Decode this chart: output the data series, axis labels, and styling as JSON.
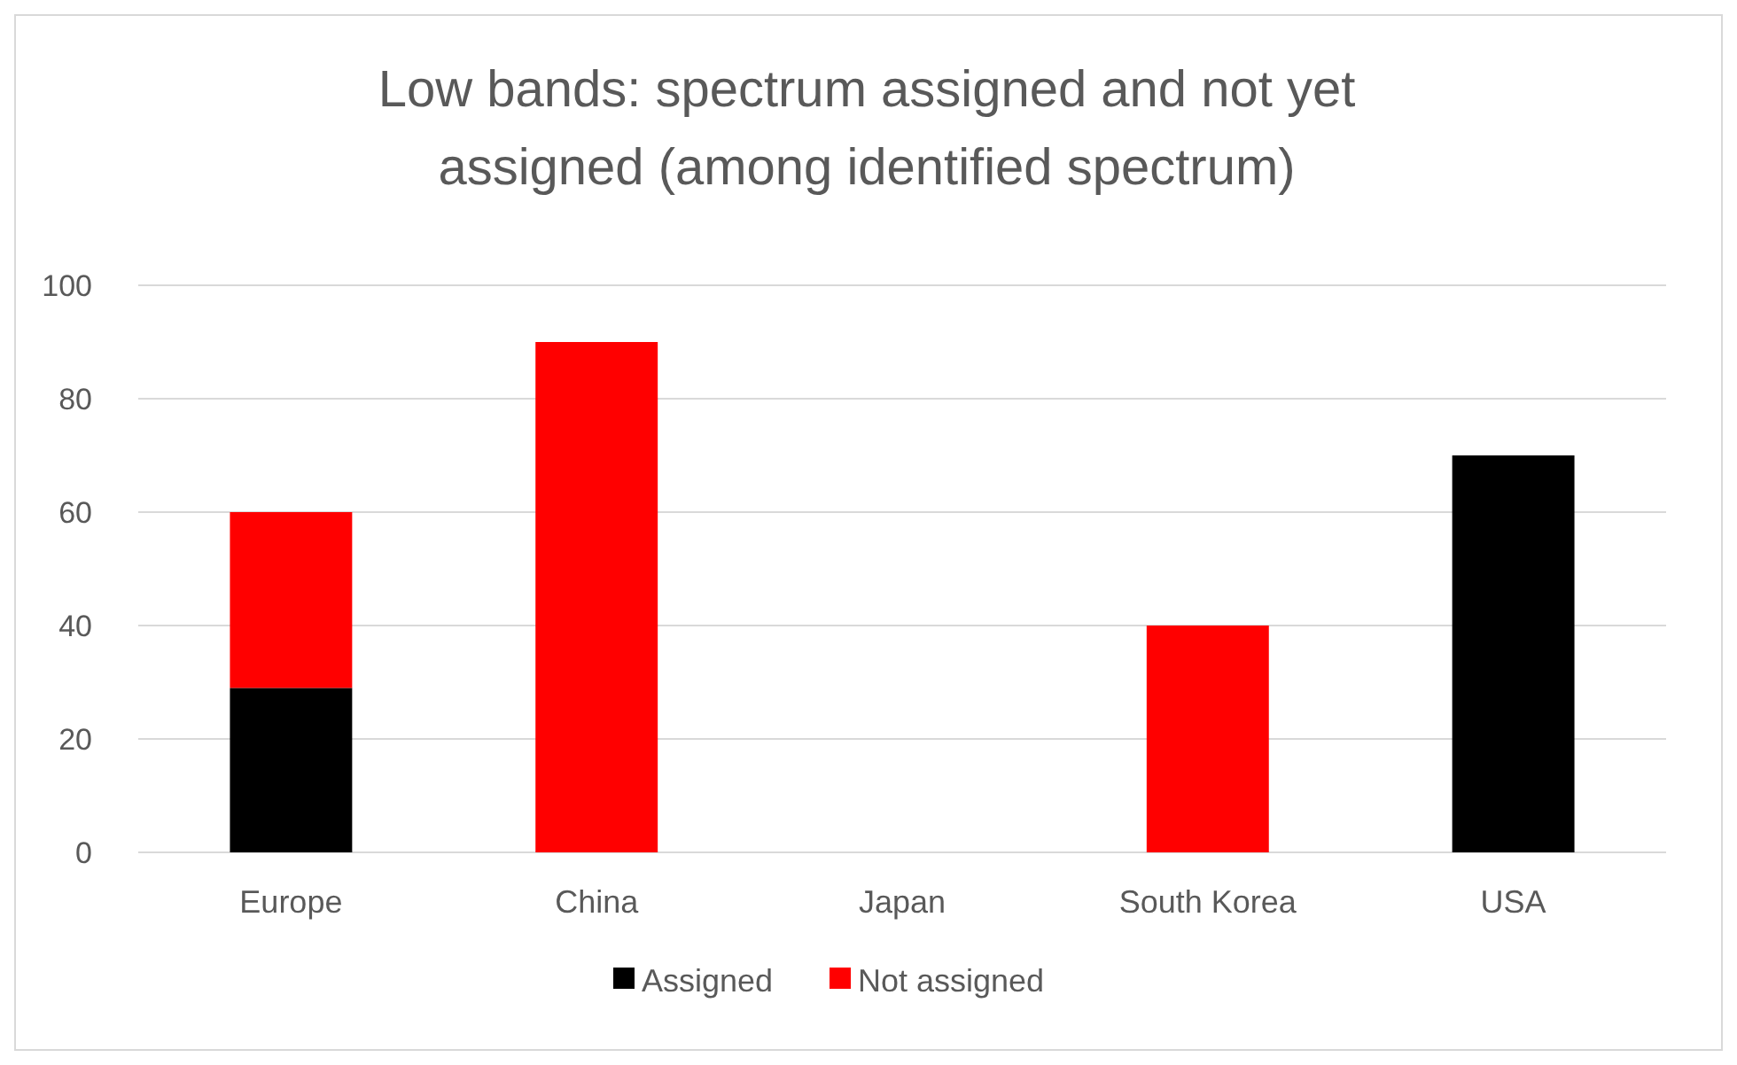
{
  "chart_data": {
    "type": "bar",
    "title": "Low bands: spectrum assigned and not yet assigned (among identified spectrum)",
    "categories": [
      "Europe",
      "China",
      "Japan",
      "South Korea",
      "USA"
    ],
    "stacked": true,
    "series": [
      {
        "name": "Assigned",
        "color": "#000000",
        "values": [
          29,
          0,
          0,
          0,
          70
        ]
      },
      {
        "name": "Not assigned",
        "color": "#ff0000",
        "values": [
          31,
          90,
          0,
          40,
          0
        ]
      }
    ],
    "ylim": [
      0,
      100
    ],
    "yticks": [
      0,
      20,
      40,
      60,
      80,
      100
    ],
    "grid": "y",
    "legend": "bottom"
  }
}
